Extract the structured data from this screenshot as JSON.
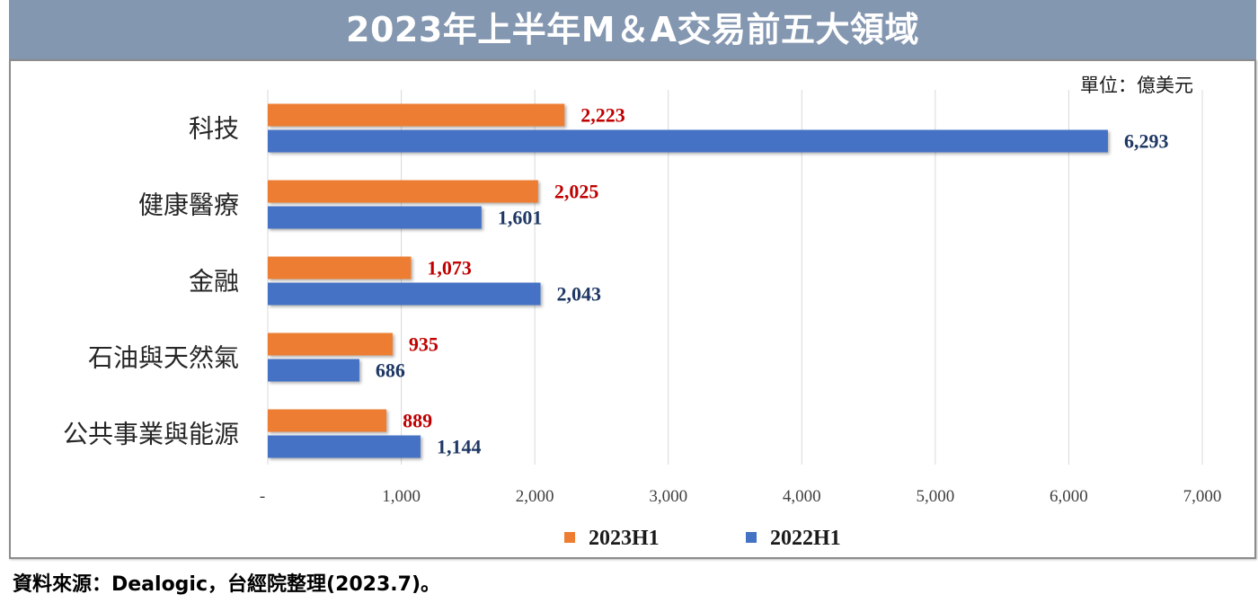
{
  "colors": {
    "title_banner": "#8497B0",
    "title_text": "#FFFFFF"
  },
  "source_note": "資料來源：Dealogic，台經院整理(2023.7)。",
  "chart_data": {
    "type": "bar",
    "orientation": "horizontal",
    "title": "2023年上半年M＆A交易前五大領域",
    "unit": "單位：億美元",
    "categories": [
      "科技",
      "健康醫療",
      "金融",
      "石油與天然氣",
      "公共事業與能源"
    ],
    "series": [
      {
        "name": "2023H1",
        "color": "#ED7D31",
        "label_color": "#C00000",
        "values": [
          2223,
          2025,
          1073,
          935,
          889
        ],
        "labels": [
          "2,223",
          "2,025",
          "1,073",
          "935",
          "889"
        ]
      },
      {
        "name": "2022H1",
        "color": "#4472C4",
        "label_color": "#1F3864",
        "values": [
          6293,
          1601,
          2043,
          686,
          1144
        ],
        "labels": [
          "6,293",
          "1,601",
          "2,043",
          "686",
          "1,144"
        ]
      }
    ],
    "xlim": [
      0,
      7000
    ],
    "xticks": [
      0,
      1000,
      2000,
      3000,
      4000,
      5000,
      6000,
      7000
    ],
    "xtick_labels": [
      "-",
      "1,000",
      "2,000",
      "3,000",
      "4,000",
      "5,000",
      "6,000",
      "7,000"
    ],
    "grid": true,
    "legend_position": "bottom"
  }
}
